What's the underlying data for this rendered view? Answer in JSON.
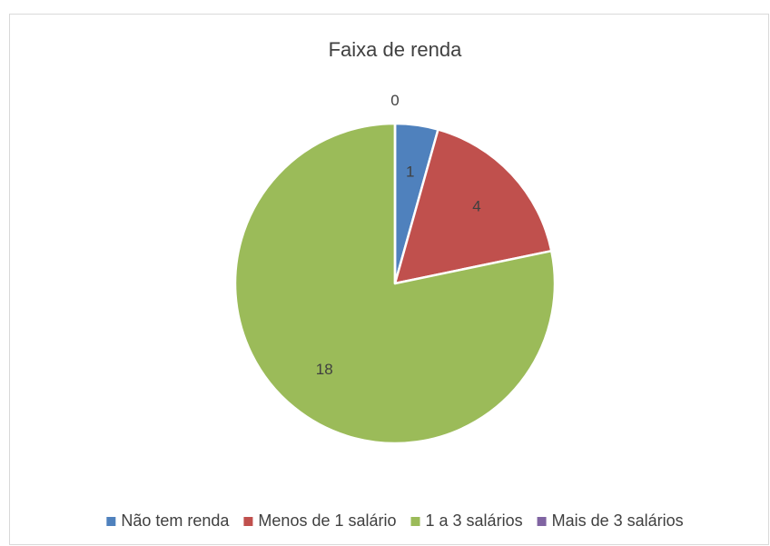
{
  "chart_data": {
    "type": "pie",
    "title": "Faixa de renda",
    "categories": [
      "Não tem renda",
      "Menos de 1 salário",
      "1 a 3 salários",
      "Mais de 3 salários"
    ],
    "values": [
      1,
      4,
      18,
      0
    ],
    "colors": [
      "#4f81bd",
      "#c0504d",
      "#9bbb59",
      "#8064a2"
    ],
    "legend": "bottom"
  }
}
